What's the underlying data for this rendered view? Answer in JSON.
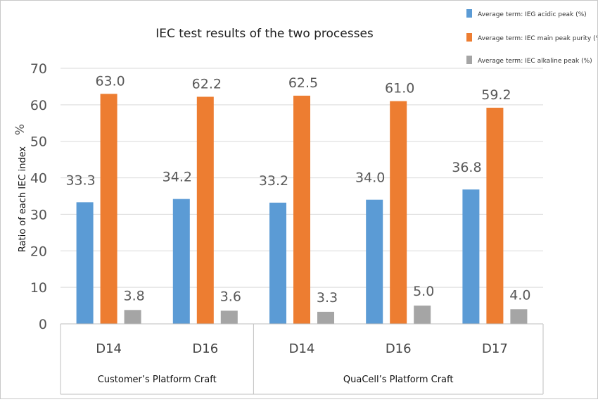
{
  "chart_data": {
    "type": "bar",
    "title": "IEC test results of the two processes",
    "ylabel": "Ratio of each IEC index",
    "yunit": "%",
    "ylim": [
      0,
      70
    ],
    "yticks": [
      0,
      10,
      20,
      30,
      40,
      50,
      60,
      70
    ],
    "grid": true,
    "legend_position": "top-right",
    "categories": [
      "D14",
      "D16",
      "D14",
      "D16",
      "D17"
    ],
    "groups": [
      {
        "label": "Customer’s Platform Craft",
        "span": 2
      },
      {
        "label": "QuaCell’s Platform Craft",
        "span": 3
      }
    ],
    "series": [
      {
        "name": "Average term:  IEG acidic peak (%)",
        "color": "#5b9bd5",
        "values": [
          33.3,
          34.2,
          33.2,
          34.0,
          36.8
        ],
        "labels": [
          "33.3",
          "34.2",
          "33.2",
          "34.0",
          "36.8"
        ]
      },
      {
        "name": "Average term:  IEC main peak purity (%)",
        "color": "#ed7d31",
        "values": [
          63.0,
          62.2,
          62.5,
          61.0,
          59.2
        ],
        "labels": [
          "63.0",
          "62.2",
          "62.5",
          "61.0",
          "59.2"
        ]
      },
      {
        "name": "Average term:  IEC alkaline peak (%)",
        "color": "#a5a5a5",
        "values": [
          3.8,
          3.6,
          3.3,
          5.0,
          4.0
        ],
        "labels": [
          "3.8",
          "3.6",
          "3.3",
          "5.0",
          "4.0"
        ]
      }
    ]
  }
}
